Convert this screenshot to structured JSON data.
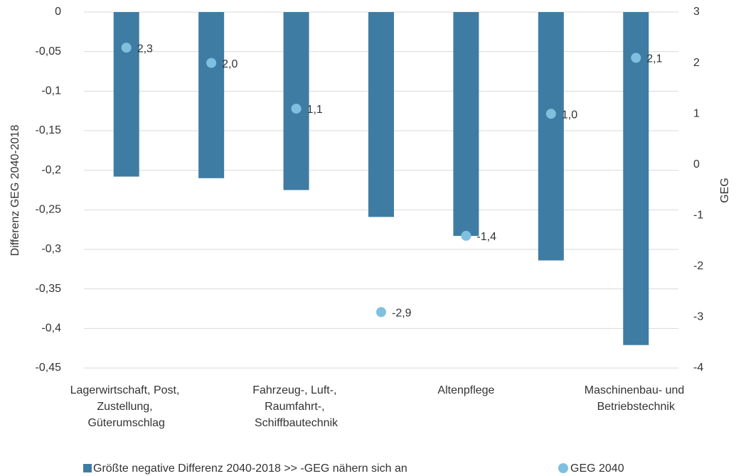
{
  "chart_data": {
    "type": "bar+scatter",
    "y_label": "Differenz GEG 2040-2018",
    "y2_label": "GEG",
    "categories": [
      "Lagerwirtschaft, Post, Zustellung, Güterumschlag",
      null,
      "Fahrzeug-, Luft-, Raumfahrt-, Schiffbautechnik",
      null,
      "Altenpflege",
      null,
      "Maschinenbau- und Betriebstechnik"
    ],
    "series": [
      {
        "name": "Größte negative Differenz 2040-2018 >> -GEG nähern sich an",
        "type": "bar",
        "color": "#3f7ca3",
        "values": [
          -0.208,
          -0.21,
          -0.225,
          -0.259,
          -0.283,
          -0.314,
          -0.421
        ]
      },
      {
        "name": "GEG 2040",
        "type": "scatter",
        "axis": "y2",
        "color": "#7fbfe0",
        "values": [
          2.3,
          2.0,
          1.1,
          -2.9,
          -1.4,
          1.0,
          2.1
        ],
        "value_labels": [
          "2,3",
          "2,0",
          "1,1",
          "-2,9",
          "-1,4",
          "1,0",
          "2,1"
        ]
      }
    ],
    "ylim": [
      -0.45,
      0
    ],
    "yticks": [
      0,
      {
        "value": -0.05,
        "label": "-0,05"
      },
      {
        "value": -0.1,
        "label": "-0,1"
      },
      {
        "value": -0.15,
        "label": "-0,15"
      },
      {
        "value": -0.2,
        "label": "-0,2"
      },
      {
        "value": -0.25,
        "label": "-0,25"
      },
      {
        "value": -0.3,
        "label": "-0,3"
      },
      {
        "value": -0.35,
        "label": "-0,35"
      },
      {
        "value": -0.4,
        "label": "-0,4"
      },
      {
        "value": -0.45,
        "label": "-0,45"
      }
    ],
    "y2lim": [
      -4,
      3
    ],
    "y2ticks": [
      3,
      2,
      1,
      0,
      -1,
      -2,
      -3,
      -4
    ],
    "grid": true,
    "legend": "bottom"
  }
}
